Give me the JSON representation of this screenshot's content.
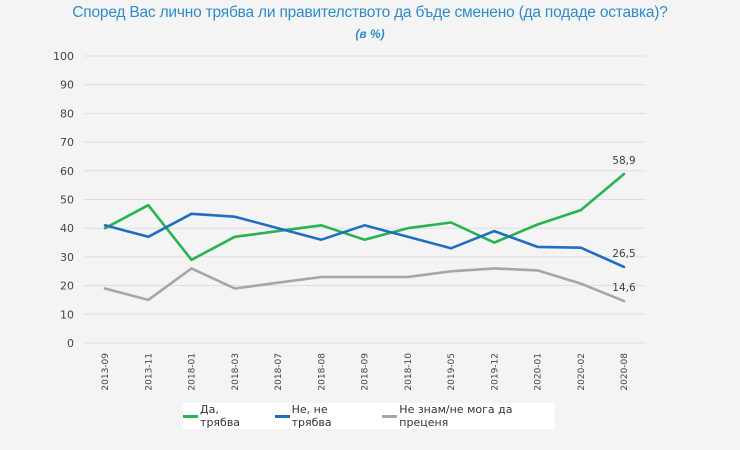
{
  "chart_data": {
    "type": "line",
    "title": "Според Вас лично трябва ли правителството да бъде сменено (да подаде оставка)?",
    "subtitle": "(в %)",
    "xlabel": "",
    "ylabel": "",
    "ylim": [
      0,
      100
    ],
    "yticks": [
      "0",
      "10",
      "20",
      "30",
      "40",
      "50",
      "60",
      "70",
      "80",
      "90",
      "100"
    ],
    "grid": true,
    "legend_position": "bottom",
    "categories": [
      "2013-09",
      "2013-11",
      "2018-01",
      "2018-03",
      "2018-07",
      "2018-08",
      "2018-09",
      "2018-10",
      "2019-05",
      "2019-12",
      "2020-01",
      "2020-02",
      "2020-08"
    ],
    "series": [
      {
        "name": "Да, трябва",
        "color": "#27b352",
        "values": [
          40,
          48,
          29,
          37,
          39,
          41,
          36,
          40,
          42,
          35,
          41.3,
          46.3,
          58.9
        ],
        "end_label": "58,9"
      },
      {
        "name": "Не, не трябва",
        "color": "#1f6fc1",
        "values": [
          41,
          37,
          45,
          44,
          40,
          36,
          41,
          37,
          33,
          39,
          33.5,
          33.2,
          26.5
        ],
        "end_label": "26,5"
      },
      {
        "name": "Не знам/не мога да преценя",
        "color": "#a6a6a6",
        "values": [
          19,
          15,
          26,
          19,
          21,
          23,
          23,
          23,
          25,
          26,
          25.3,
          20.7,
          14.6
        ],
        "end_label": "14,6"
      }
    ]
  }
}
